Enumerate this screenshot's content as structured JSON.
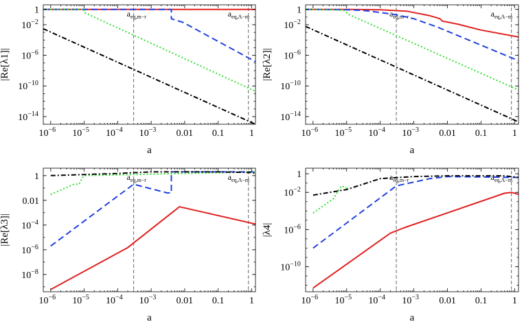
{
  "chart_data": [
    {
      "type": "line",
      "title": "",
      "xlabel": "a",
      "ylabel": "|Re[λ1]|",
      "xscale": "log",
      "yscale": "log",
      "xlim": [
        6e-07,
        1.3
      ],
      "ylim": [
        1e-15,
        4
      ],
      "xticks": [
        {
          "value": 1e-06,
          "label": "10",
          "exp": "−6"
        },
        {
          "value": 1e-05,
          "label": "10",
          "exp": "−5"
        },
        {
          "value": 0.0001,
          "label": "10",
          "exp": "−4"
        },
        {
          "value": 0.001,
          "label": "10",
          "exp": "−3"
        },
        {
          "value": 0.01,
          "label": "0.01",
          "exp": ""
        },
        {
          "value": 0.1,
          "label": "0.1",
          "exp": ""
        },
        {
          "value": 1,
          "label": "1",
          "exp": ""
        }
      ],
      "yticks": [
        {
          "value": 1,
          "label": "1",
          "exp": ""
        },
        {
          "value": 0.01,
          "label": "10",
          "exp": "−2"
        },
        {
          "value": 1e-06,
          "label": "10",
          "exp": "−6"
        },
        {
          "value": 1e-10,
          "label": "10",
          "exp": "−10"
        },
        {
          "value": 1e-14,
          "label": "10",
          "exp": "−14"
        }
      ],
      "vlines": [
        {
          "x": 0.0003,
          "label": "a",
          "sub": "eq,m−r"
        },
        {
          "x": 0.8,
          "label": "a",
          "sub": "eq,Λ−m"
        }
      ],
      "series": [
        {
          "color": "#e02020",
          "dash": "",
          "points": [
            [
              6e-07,
              1
            ],
            [
              1.3,
              1
            ]
          ]
        },
        {
          "color": "#2040e0",
          "dash": "9,5",
          "points": [
            [
              6e-07,
              1
            ],
            [
              0.004,
              1
            ],
            [
              0.004,
              0.06
            ],
            [
              0.009,
              0.02
            ],
            [
              1.3,
              1.5e-07
            ]
          ]
        },
        {
          "color": "#30e030",
          "dash": "2,3",
          "points": [
            [
              6e-07,
              1
            ],
            [
              1e-05,
              1
            ],
            [
              1e-05,
              0.4
            ],
            [
              1.3,
              2e-11
            ]
          ]
        },
        {
          "color": "#000000",
          "dash": "7,3,2,3",
          "points": [
            [
              6e-07,
              0.003
            ],
            [
              1.3,
              1e-15
            ]
          ]
        }
      ]
    },
    {
      "type": "line",
      "title": "",
      "xlabel": "a",
      "ylabel": "|Re[λ2]|",
      "xscale": "log",
      "yscale": "log",
      "xlim": [
        6e-07,
        1.3
      ],
      "ylim": [
        1e-15,
        4
      ],
      "xticks": [
        {
          "value": 1e-06,
          "label": "10",
          "exp": "−6"
        },
        {
          "value": 1e-05,
          "label": "10",
          "exp": "−5"
        },
        {
          "value": 0.0001,
          "label": "10",
          "exp": "−4"
        },
        {
          "value": 0.001,
          "label": "10",
          "exp": "−3"
        },
        {
          "value": 0.01,
          "label": "0.01",
          "exp": ""
        },
        {
          "value": 0.1,
          "label": "0.1",
          "exp": ""
        },
        {
          "value": 1,
          "label": "1",
          "exp": ""
        }
      ],
      "yticks": [
        {
          "value": 1,
          "label": "1",
          "exp": ""
        },
        {
          "value": 0.01,
          "label": "10",
          "exp": "−2"
        },
        {
          "value": 1e-06,
          "label": "10",
          "exp": "−6"
        },
        {
          "value": 1e-10,
          "label": "10",
          "exp": "−10"
        },
        {
          "value": 1e-14,
          "label": "10",
          "exp": "−14"
        }
      ],
      "vlines": [
        {
          "x": 0.0003,
          "label": "a",
          "sub": "eq,m−r"
        },
        {
          "x": 0.8,
          "label": "a",
          "sub": "eq,Λ−m"
        }
      ],
      "series": [
        {
          "color": "#e02020",
          "dash": "",
          "points": [
            [
              6e-07,
              1
            ],
            [
              1e-05,
              1
            ],
            [
              0.0001,
              0.9
            ],
            [
              0.0006,
              0.6
            ],
            [
              0.003,
              0.15
            ],
            [
              0.006,
              0.06
            ],
            [
              0.007,
              0.03
            ],
            [
              0.02,
              0.012
            ],
            [
              0.1,
              0.002
            ],
            [
              1.3,
              0.00025
            ]
          ]
        },
        {
          "color": "#2040e0",
          "dash": "9,5",
          "points": [
            [
              6e-07,
              1
            ],
            [
              1e-05,
              0.9
            ],
            [
              3e-05,
              0.75
            ],
            [
              0.0001,
              0.4
            ],
            [
              0.0003,
              0.2
            ],
            [
              0.001,
              0.06
            ],
            [
              0.005,
              0.005
            ],
            [
              1.3,
              2e-07
            ]
          ]
        },
        {
          "color": "#30e030",
          "dash": "2,3",
          "points": [
            [
              6e-07,
              1
            ],
            [
              8e-06,
              0.8
            ],
            [
              1.2e-05,
              0.2
            ],
            [
              1.3,
              3e-11
            ]
          ]
        },
        {
          "color": "#000000",
          "dash": "7,3,2,3",
          "points": [
            [
              6e-07,
              0.006
            ],
            [
              1.3,
              2e-15
            ]
          ]
        }
      ]
    },
    {
      "type": "line",
      "title": "",
      "xlabel": "a",
      "ylabel": "|Re[λ3]|",
      "xscale": "log",
      "yscale": "log",
      "xlim": [
        6e-07,
        1.3
      ],
      "ylim": [
        4e-10,
        4
      ],
      "xticks": [
        {
          "value": 1e-06,
          "label": "10",
          "exp": "−6"
        },
        {
          "value": 1e-05,
          "label": "10",
          "exp": "−5"
        },
        {
          "value": 0.0001,
          "label": "10",
          "exp": "−4"
        },
        {
          "value": 0.001,
          "label": "10",
          "exp": "−3"
        },
        {
          "value": 0.01,
          "label": "0.01",
          "exp": ""
        },
        {
          "value": 0.1,
          "label": "0.1",
          "exp": ""
        },
        {
          "value": 1,
          "label": "1",
          "exp": ""
        }
      ],
      "yticks": [
        {
          "value": 1,
          "label": "1",
          "exp": ""
        },
        {
          "value": 0.01,
          "label": "0.01",
          "exp": ""
        },
        {
          "value": 0.0001,
          "label": "10",
          "exp": "−4"
        },
        {
          "value": 1e-06,
          "label": "10",
          "exp": "−6"
        },
        {
          "value": 1e-08,
          "label": "10",
          "exp": "−8"
        }
      ],
      "vlines": [
        {
          "x": 0.0003,
          "label": "a",
          "sub": "eq,m−r"
        },
        {
          "x": 0.8,
          "label": "a",
          "sub": "eq,Λ−m"
        }
      ],
      "series": [
        {
          "color": "#e02020",
          "dash": "",
          "points": [
            [
              1e-06,
              6e-10
            ],
            [
              0.0002,
              1.5e-06
            ],
            [
              0.007,
              0.003
            ],
            [
              1.3,
              0.00012
            ]
          ]
        },
        {
          "color": "#2040e0",
          "dash": "9,5",
          "points": [
            [
              1e-06,
              2e-06
            ],
            [
              0.0003,
              0.2
            ],
            [
              0.003,
              0.04
            ],
            [
              0.004,
              0.04
            ],
            [
              0.004,
              2
            ],
            [
              1.3,
              2
            ]
          ]
        },
        {
          "color": "#30e030",
          "dash": "2,3",
          "points": [
            [
              1e-06,
              0.03
            ],
            [
              5e-06,
              0.2
            ],
            [
              7e-06,
              0.2
            ],
            [
              9e-06,
              0.7
            ],
            [
              1e-05,
              1
            ],
            [
              1.3,
              2
            ]
          ]
        },
        {
          "color": "#000000",
          "dash": "7,3,2,3",
          "points": [
            [
              1e-06,
              1
            ],
            [
              0.0001,
              1.5
            ],
            [
              0.001,
              2
            ],
            [
              0.1,
              2
            ],
            [
              1,
              1.8
            ],
            [
              1.3,
              1.5
            ]
          ]
        }
      ]
    },
    {
      "type": "line",
      "title": "",
      "xlabel": "a",
      "ylabel": "|λ4|",
      "xscale": "log",
      "yscale": "log",
      "xlim": [
        6e-07,
        1.3
      ],
      "ylim": [
        2e-13,
        4
      ],
      "xticks": [
        {
          "value": 1e-06,
          "label": "10",
          "exp": "−6"
        },
        {
          "value": 1e-05,
          "label": "10",
          "exp": "−5"
        },
        {
          "value": 0.0001,
          "label": "10",
          "exp": "−4"
        },
        {
          "value": 0.001,
          "label": "10",
          "exp": "−3"
        },
        {
          "value": 0.01,
          "label": "0.01",
          "exp": ""
        },
        {
          "value": 0.1,
          "label": "0.1",
          "exp": ""
        },
        {
          "value": 1,
          "label": "1",
          "exp": ""
        }
      ],
      "yticks": [
        {
          "value": 1,
          "label": "1",
          "exp": ""
        },
        {
          "value": 0.01,
          "label": "10",
          "exp": "−2"
        },
        {
          "value": 1e-06,
          "label": "10",
          "exp": "−6"
        },
        {
          "value": 1e-10,
          "label": "10",
          "exp": "−10"
        }
      ],
      "vlines": [
        {
          "x": 0.0003,
          "label": "a",
          "sub": "eq,m−r"
        },
        {
          "x": 0.8,
          "label": "a",
          "sub": "eq,Λ−m"
        }
      ],
      "series": [
        {
          "color": "#e02020",
          "dash": "",
          "points": [
            [
              1e-06,
              5e-13
            ],
            [
              0.0002,
              4e-07
            ],
            [
              0.0005,
              1.5e-06
            ],
            [
              0.5,
              0.008
            ],
            [
              0.8,
              0.01
            ],
            [
              1.3,
              0.006
            ]
          ]
        },
        {
          "color": "#2040e0",
          "dash": "9,5",
          "points": [
            [
              1e-06,
              1e-08
            ],
            [
              0.0003,
              0.05
            ],
            [
              0.003,
              0.3
            ],
            [
              0.01,
              0.5
            ],
            [
              1.3,
              0.4
            ]
          ]
        },
        {
          "color": "#30e030",
          "dash": "2,3",
          "points": [
            [
              1e-06,
              6e-05
            ],
            [
              4e-06,
              0.002
            ],
            [
              7e-06,
              0.05
            ],
            [
              1e-05,
              0.03
            ],
            [
              1.2e-05,
              0.03
            ]
          ]
        },
        {
          "color": "#000000",
          "dash": "7,3,2,3",
          "points": [
            [
              1e-06,
              0.005
            ],
            [
              1e-05,
              0.02
            ],
            [
              0.0001,
              0.3
            ],
            [
              0.001,
              0.5
            ],
            [
              0.01,
              0.6
            ],
            [
              0.5,
              0.6
            ],
            [
              1.3,
              0.4
            ]
          ]
        }
      ]
    }
  ]
}
